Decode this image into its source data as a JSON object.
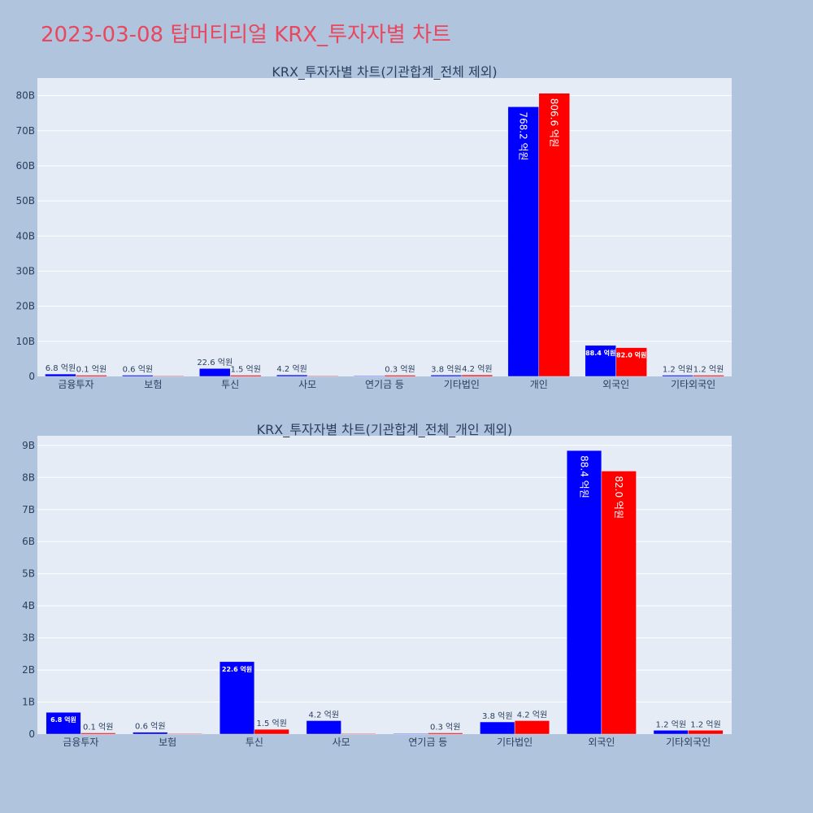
{
  "page_title": "2023-03-08 탑머티리얼 KRX_투자자별 차트",
  "colors": {
    "background": "#b0c4de",
    "plot_bg": "#e5ecf6",
    "series_a": "#0000ff",
    "series_b": "#ff0000",
    "title": "#e8475f"
  },
  "chart_data": [
    {
      "type": "bar",
      "title": "KRX_투자자별 차트(기관합계_전체 제외)",
      "categories": [
        "금융투자",
        "보험",
        "투신",
        "사모",
        "연기금 등",
        "기타법인",
        "개인",
        "외국인",
        "기타외국인"
      ],
      "series": [
        {
          "color": "#0000ff",
          "values": [
            680000000,
            60000000,
            2260000000,
            420000000,
            0,
            380000000,
            76820000000,
            8840000000,
            120000000
          ],
          "labels": [
            "6.8 억원",
            "0.6 억원",
            "22.6 억원",
            "4.2 억원",
            "",
            "3.8 억원",
            "768.2 억원",
            "88.4 억원",
            "1.2 억원"
          ]
        },
        {
          "color": "#ff0000",
          "values": [
            10000000,
            0,
            150000000,
            0,
            30000000,
            420000000,
            80660000000,
            8200000000,
            120000000
          ],
          "labels": [
            "0.1 억원",
            "",
            "1.5 억원",
            "",
            "0.3 억원",
            "4.2 억원",
            "806.6 억원",
            "82.0 억원",
            "1.2 억원"
          ]
        }
      ],
      "yticks": [
        "0",
        "10B",
        "20B",
        "30B",
        "40B",
        "50B",
        "60B",
        "70B",
        "80B"
      ],
      "ylim": [
        0,
        85000000000
      ],
      "grid": true
    },
    {
      "type": "bar",
      "title": "KRX_투자자별 차트(기관합계_전체_개인 제외)",
      "categories": [
        "금융투자",
        "보험",
        "투신",
        "사모",
        "연기금 등",
        "기타법인",
        "외국인",
        "기타외국인"
      ],
      "series": [
        {
          "color": "#0000ff",
          "values": [
            680000000,
            60000000,
            2260000000,
            420000000,
            0,
            380000000,
            8840000000,
            120000000
          ],
          "labels": [
            "6.8 억원",
            "0.6 억원",
            "22.6 억원",
            "4.2 억원",
            "",
            "3.8 억원",
            "88.4 억원",
            "1.2 억원"
          ]
        },
        {
          "color": "#ff0000",
          "values": [
            10000000,
            0,
            150000000,
            0,
            30000000,
            420000000,
            8200000000,
            120000000
          ],
          "labels": [
            "0.1 억원",
            "",
            "1.5 억원",
            "",
            "0.3 억원",
            "4.2 억원",
            "82.0 억원",
            "1.2 억원"
          ]
        }
      ],
      "yticks": [
        "0",
        "1B",
        "2B",
        "3B",
        "4B",
        "5B",
        "6B",
        "7B",
        "8B",
        "9B"
      ],
      "ylim": [
        0,
        9300000000
      ],
      "grid": true
    }
  ]
}
